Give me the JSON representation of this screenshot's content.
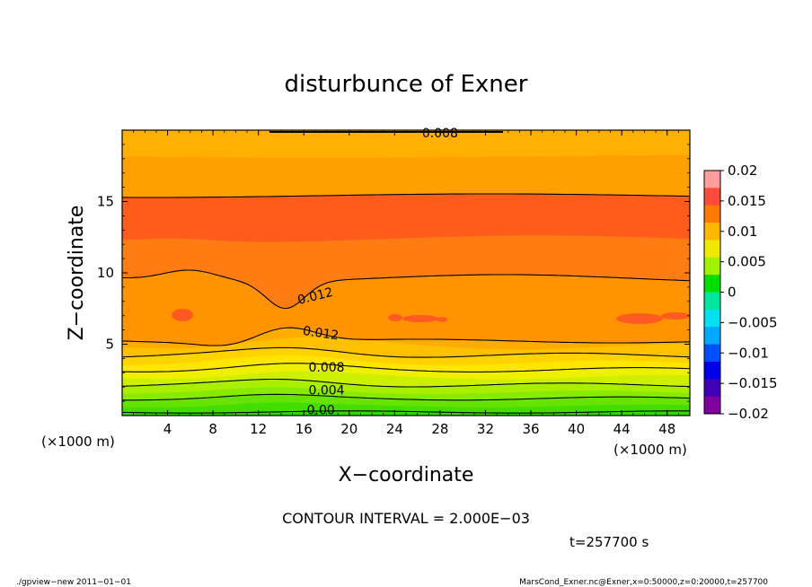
{
  "chart_data": {
    "type": "contour",
    "title": "disturbunce of Exner",
    "xlabel": "X−coordinate",
    "ylabel": "Z−coordinate",
    "x_unit_left": "(×1000 m)",
    "x_unit_right": "(×1000 m)",
    "xlim": [
      0,
      50
    ],
    "ylim": [
      0,
      20
    ],
    "x_ticks": [
      4,
      8,
      12,
      16,
      20,
      24,
      28,
      32,
      36,
      40,
      44,
      48
    ],
    "x_tick_labels": [
      "4",
      "8",
      "12",
      "16",
      "20",
      "24",
      "28",
      "32",
      "36",
      "40",
      "44",
      "48"
    ],
    "y_ticks": [
      5,
      10,
      15
    ],
    "y_tick_labels": [
      "5",
      "10",
      "15"
    ],
    "contour_interval_text": "CONTOUR INTERVAL = 2.000E−03",
    "time_text": "t=257700 s",
    "contour_labels": [
      {
        "text": "0.008",
        "x": 28,
        "z": 19.8
      },
      {
        "text": "0.012",
        "x": 17,
        "z": 8.4
      },
      {
        "text": "0.012",
        "x": 17.5,
        "z": 5.8
      },
      {
        "text": "0.008",
        "x": 18,
        "z": 3.4
      },
      {
        "text": "0.004",
        "x": 18,
        "z": 1.8
      },
      {
        "text": "0.00",
        "x": 17.5,
        "z": 0.4
      }
    ],
    "colorbar": {
      "min": -0.02,
      "max": 0.02,
      "tick_labels": [
        "0.02",
        "0.015",
        "0.01",
        "0.005",
        "0",
        "−0.005",
        "−0.01",
        "−0.015",
        "−0.02"
      ],
      "level_values": [
        0.02,
        0.015,
        0.01,
        0.005,
        0,
        -0.005,
        -0.01,
        -0.015,
        -0.02
      ],
      "colors": [
        "#ff9c9c",
        "#ff4a3c",
        "#ff7a00",
        "#ffb800",
        "#f0e800",
        "#a0f000",
        "#00dd00",
        "#00e6a0",
        "#00e0f0",
        "#00a8ff",
        "#0050ff",
        "#0000e8",
        "#4000b8",
        "#8000a0"
      ]
    },
    "bands": [
      {
        "level": "0.000–0.001",
        "color": "#44dd00"
      },
      {
        "level": "0.001–0.002",
        "color": "#66e400"
      },
      {
        "level": "0.002–0.003",
        "color": "#88ea00"
      },
      {
        "level": "0.003–0.004",
        "color": "#aaee00"
      },
      {
        "level": "0.004–0.005",
        "color": "#ccf000"
      },
      {
        "level": "0.005–0.006",
        "color": "#eef000"
      },
      {
        "level": "0.006–0.007",
        "color": "#ffe600"
      },
      {
        "level": "0.007–0.008",
        "color": "#ffd200"
      },
      {
        "level": "0.008–0.009",
        "color": "#ffc000"
      },
      {
        "level": "0.009–0.010",
        "color": "#ffac00"
      },
      {
        "level": "0.010–0.011",
        "color": "#ff9400"
      },
      {
        "level": "0.011–0.012",
        "color": "#ff7c12"
      },
      {
        "level": "0.012–0.013",
        "color": "#ff5c1c"
      }
    ]
  },
  "footer": {
    "left": "./gpview−new   2011−01−01",
    "right": "MarsCond_Exner.nc@Exner,x=0:50000,z=0:20000,t=257700"
  }
}
